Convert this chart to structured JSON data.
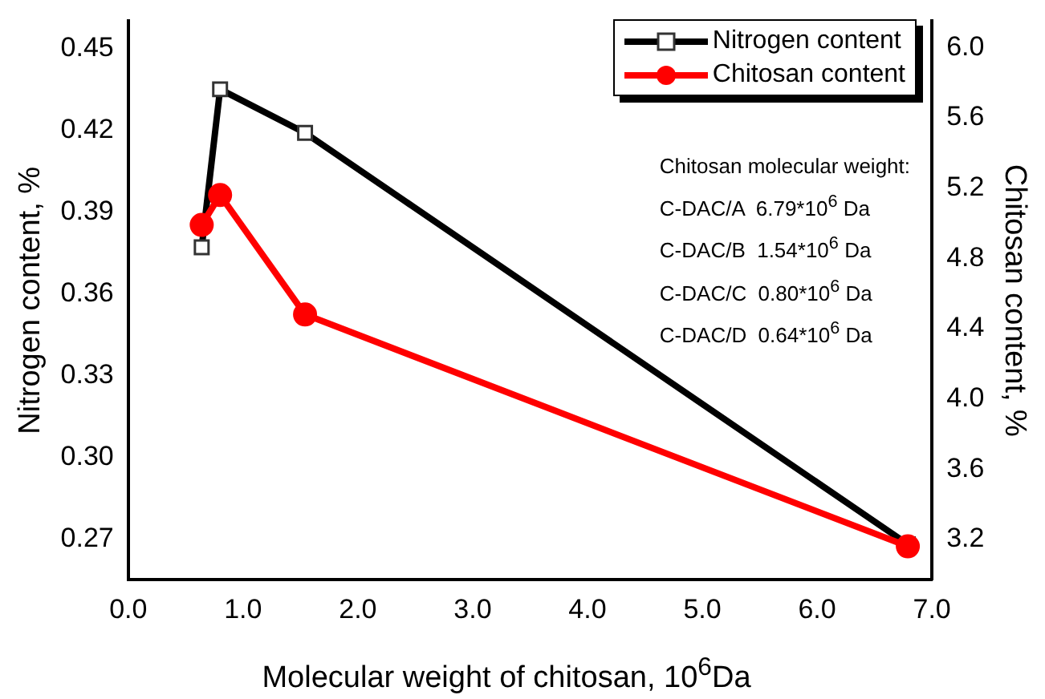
{
  "chart_data": {
    "type": "line",
    "xlabel": "Molecular weight of chitosan, 10$^{6}$Da",
    "ylabel": "Nitrogen content, %",
    "y2label": "Chitosan content, %",
    "x": [
      0.64,
      0.8,
      1.54,
      6.79
    ],
    "series": [
      {
        "name": "Nitrogen content",
        "color": "#000000",
        "marker": "square",
        "values": [
          0.377,
          0.435,
          0.419,
          0.268
        ]
      },
      {
        "name": "Chitosan content",
        "color": "#ff0000",
        "marker": "circle",
        "axis": "y2",
        "values": [
          4.99,
          5.16,
          4.48,
          3.16
        ]
      }
    ],
    "xlim": [
      0,
      7
    ],
    "xticks": [
      {
        "value": 0,
        "label": "0.0"
      },
      {
        "value": 1,
        "label": "1.0"
      },
      {
        "value": 2,
        "label": "2.0"
      },
      {
        "value": 3,
        "label": "3.0"
      },
      {
        "value": 4,
        "label": "4.0"
      },
      {
        "value": 5,
        "label": "5.0"
      },
      {
        "value": 6,
        "label": "6.0"
      },
      {
        "value": 7,
        "label": "7.0"
      }
    ],
    "ylim": [
      0.255,
      0.46
    ],
    "yticks": [
      {
        "value": 0.27,
        "label": "0.27"
      },
      {
        "value": 0.3,
        "label": "0.30"
      },
      {
        "value": 0.33,
        "label": "0.33"
      },
      {
        "value": 0.36,
        "label": "0.36"
      },
      {
        "value": 0.39,
        "label": "0.39"
      },
      {
        "value": 0.42,
        "label": "0.42"
      },
      {
        "value": 0.45,
        "label": "0.45"
      }
    ],
    "y2lim": [
      2.97,
      6.15
    ],
    "y2ticks": [
      {
        "value": 3.2,
        "label": "3.2"
      },
      {
        "value": 3.6,
        "label": "3.6"
      },
      {
        "value": 4.0,
        "label": "4.0"
      },
      {
        "value": 4.4,
        "label": "4.4"
      },
      {
        "value": 4.8,
        "label": "4.8"
      },
      {
        "value": 5.2,
        "label": "5.2"
      },
      {
        "value": 5.6,
        "label": "5.6"
      },
      {
        "value": 6.0,
        "label": "6.0"
      }
    ],
    "grid": false,
    "legend": "top right",
    "line_style": "solid",
    "annotations": [
      "Chitosan molecular weight:",
      "C-DAC/A  6.79*10$^{6}$ Da",
      "C-DAC/B  1.54*10$^{6}$ Da",
      "C-DAC/C  0.80*10$^{6}$ Da",
      "C-DAC/D  0.64*10$^{6}$ Da"
    ]
  }
}
